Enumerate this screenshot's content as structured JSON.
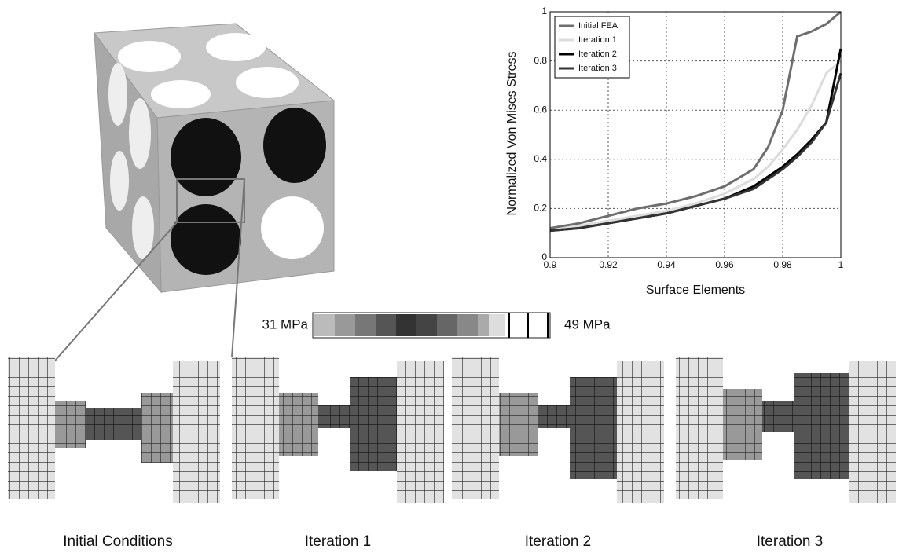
{
  "chart_data": {
    "type": "line",
    "xlabel": "Surface Elements",
    "ylabel": "Normalized Von Mises Stress",
    "x": [
      0.9,
      0.91,
      0.92,
      0.93,
      0.94,
      0.95,
      0.96,
      0.97,
      0.975,
      0.98,
      0.985,
      0.99,
      0.995,
      1
    ],
    "series": [
      {
        "name": "Initial FEA",
        "color": "#6e6e6e",
        "values": [
          0.12,
          0.14,
          0.17,
          0.2,
          0.22,
          0.25,
          0.29,
          0.36,
          0.45,
          0.6,
          0.9,
          0.92,
          0.95,
          1.0
        ]
      },
      {
        "name": "Iteration 1",
        "color": "#dcdcdc",
        "values": [
          0.11,
          0.13,
          0.15,
          0.17,
          0.19,
          0.22,
          0.26,
          0.32,
          0.37,
          0.44,
          0.52,
          0.62,
          0.75,
          0.8
        ]
      },
      {
        "name": "Iteration 2",
        "color": "#000000",
        "values": [
          0.11,
          0.12,
          0.14,
          0.16,
          0.18,
          0.21,
          0.24,
          0.29,
          0.33,
          0.37,
          0.42,
          0.48,
          0.55,
          0.85
        ]
      },
      {
        "name": "Iteration 3",
        "color": "#333333",
        "values": [
          0.11,
          0.12,
          0.14,
          0.16,
          0.18,
          0.21,
          0.24,
          0.28,
          0.32,
          0.36,
          0.41,
          0.47,
          0.55,
          0.75
        ]
      }
    ],
    "xlim": [
      0.9,
      1
    ],
    "xticks": [
      0.9,
      0.92,
      0.94,
      0.96,
      0.98,
      1
    ],
    "ylim": [
      0,
      1
    ],
    "yticks": [
      0,
      0.2,
      0.4,
      0.6,
      0.8,
      1
    ],
    "grid": true,
    "legend": "upper-left"
  },
  "colorbar": {
    "min_label": "31 MPa",
    "max_label": "49 MPa"
  },
  "panels": [
    "Initial Conditions",
    "Iteration 1",
    "Iteration 2",
    "Iteration 3"
  ]
}
